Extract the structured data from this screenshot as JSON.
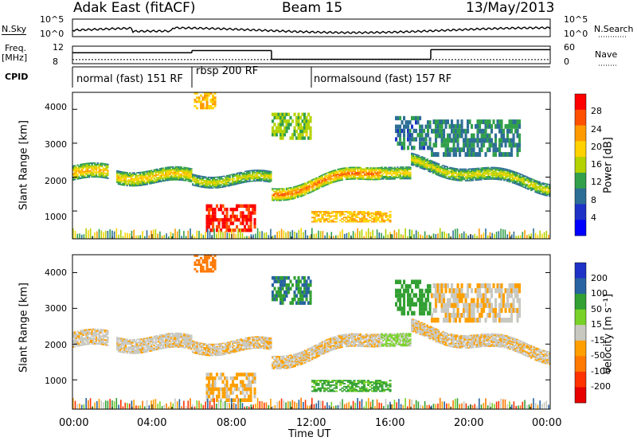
{
  "header": {
    "station": "Adak East (fitACF)",
    "beam": "Beam 15",
    "date": "13/May/2013"
  },
  "noise_panel": {
    "left_label": "N.Sky",
    "left_ticks": [
      "10^5",
      "10^0"
    ],
    "right_ticks": [
      "10^5",
      "10^0"
    ],
    "right_label": "N.Search"
  },
  "freq_panel": {
    "left_label_1": "Freq.",
    "left_label_2": "[MHz]",
    "left_ticks": [
      "12",
      "8"
    ],
    "right_ticks": [
      "60",
      "0"
    ],
    "right_label": "Nave",
    "freq_segments": [
      {
        "t0": 0.0,
        "t1": 6.0,
        "value": 10.5
      },
      {
        "t0": 6.0,
        "t1": 10.0,
        "value": 11.0
      },
      {
        "t0": 10.0,
        "t1": 18.0,
        "value": 9.0
      },
      {
        "t0": 18.0,
        "t1": 24.0,
        "value": 11.2
      }
    ],
    "nave_segments": [
      {
        "t0": 0.0,
        "t1": 24.0,
        "value": 14
      }
    ]
  },
  "cpid": {
    "label": "CPID",
    "programs": [
      {
        "t0": 0.0,
        "t1": 6.0,
        "name": "normal (fast) 151 RF"
      },
      {
        "t0": 6.0,
        "t1": 12.0,
        "name": "rbsp 200 RF"
      },
      {
        "t0": 12.0,
        "t1": 24.0,
        "name": "normalsound (fast) 157 RF"
      }
    ]
  },
  "power_panel": {
    "ylabel": "Slant Range [km]",
    "yticks": [
      "4000",
      "3000",
      "2000",
      "1000"
    ],
    "colorbar_label": "Power [dB]",
    "colorbar_ticks": [
      "28",
      "24",
      "20",
      "16",
      "12",
      "8",
      "4"
    ],
    "colorbar_colors": [
      "#ff0000",
      "#ff5000",
      "#ff9b00",
      "#ffd200",
      "#b4d200",
      "#32a04b",
      "#2d6e96",
      "#1e32c8",
      "#0000ff"
    ]
  },
  "velocity_panel": {
    "ylabel": "Slant Range [km]",
    "yticks": [
      "4000",
      "3000",
      "2000",
      "1000"
    ],
    "colorbar_label": "Velocity [m s⁻¹]",
    "colorbar_ticks": [
      "200",
      "100",
      "50",
      "15",
      "-15",
      "-50",
      "-100",
      "-200"
    ],
    "colorbar_colors": [
      "#1e32c8",
      "#2864a0",
      "#32a032",
      "#78d228",
      "#c8c8c0",
      "#ffa000",
      "#ff7800",
      "#ff3200",
      "#e60000"
    ]
  },
  "x_axis": {
    "ticks": [
      "00:00",
      "04:00",
      "08:00",
      "12:00",
      "16:00",
      "20:00",
      "00:00"
    ],
    "label": "Time UT"
  },
  "chart_data": {
    "type": "heatmap",
    "title": "Adak East (fitACF)",
    "x_range_hours": [
      0,
      24
    ],
    "y_range_km": [
      180,
      4500
    ],
    "power_scale_db": [
      0,
      30
    ],
    "velocity_scale_ms": [
      -250,
      250
    ],
    "backscatter_bands": [
      {
        "t0": 0.0,
        "t1": 1.8,
        "center_km_start": 2100,
        "center_km_end": 2050,
        "width_km": 450,
        "power_db": 22,
        "velocity_ms": -5
      },
      {
        "t0": 2.2,
        "t1": 6.0,
        "center_km_start": 2050,
        "center_km_end": 1950,
        "width_km": 420,
        "power_db": 21,
        "velocity_ms": -5
      },
      {
        "t0": 6.0,
        "t1": 10.0,
        "center_km_start": 1950,
        "center_km_end": 1900,
        "width_km": 350,
        "power_db": 18,
        "velocity_ms": -10
      },
      {
        "t0": 10.0,
        "t1": 15.5,
        "center_km_start": 1500,
        "center_km_end": 2200,
        "width_km": 380,
        "power_db": 26,
        "velocity_ms": -10
      },
      {
        "t0": 15.5,
        "t1": 17.0,
        "center_km_start": 2200,
        "center_km_end": 2000,
        "width_km": 380,
        "power_db": 20,
        "velocity_ms": 20
      },
      {
        "t0": 17.0,
        "t1": 24.0,
        "center_km_start": 2400,
        "center_km_end": 1700,
        "width_km": 380,
        "power_db": 18,
        "velocity_ms": -10
      }
    ],
    "patches": [
      {
        "t0": 6.7,
        "t1": 9.2,
        "r0": 380,
        "r1": 1200,
        "power_db": 29,
        "velocity_ms": -20
      },
      {
        "t0": 10.0,
        "t1": 12.0,
        "r0": 3100,
        "r1": 3900,
        "power_db": 14,
        "velocity_ms": 100
      },
      {
        "t0": 12.0,
        "t1": 16.0,
        "r0": 660,
        "r1": 1000,
        "power_db": 20,
        "velocity_ms": 60
      },
      {
        "t0": 6.1,
        "t1": 7.2,
        "r0": 4000,
        "r1": 4500,
        "power_db": 20,
        "velocity_ms": -80
      },
      {
        "t0": 16.2,
        "t1": 18.0,
        "r0": 2800,
        "r1": 3800,
        "power_db": 8,
        "velocity_ms": 80
      },
      {
        "t0": 18.0,
        "t1": 22.5,
        "r0": 2600,
        "r1": 3700,
        "power_db": 9,
        "velocity_ms": -10
      }
    ]
  }
}
